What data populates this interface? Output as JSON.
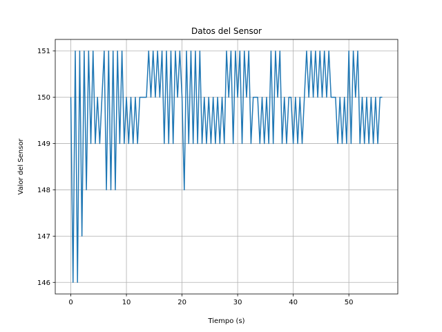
{
  "chart_data": {
    "type": "line",
    "title": "Datos del Sensor",
    "xlabel": "Tiempo (s)",
    "ylabel": "Valor del Sensor",
    "color": "#1f77b4",
    "grid": true,
    "xlim": [
      -2.8,
      58.8
    ],
    "ylim": [
      145.75,
      151.25
    ],
    "xticks": [
      0,
      10,
      20,
      30,
      40,
      50
    ],
    "yticks": [
      146,
      147,
      148,
      149,
      150,
      151
    ],
    "x": [
      0,
      0.4,
      0.8,
      1.2,
      1.6,
      2.0,
      2.4,
      2.8,
      3.2,
      3.6,
      4.0,
      4.4,
      4.8,
      5.2,
      5.6,
      6.0,
      6.4,
      6.8,
      7.2,
      7.6,
      8.0,
      8.4,
      8.8,
      9.2,
      9.6,
      10.0,
      10.4,
      10.8,
      11.2,
      11.6,
      12.0,
      12.4,
      12.8,
      13.2,
      13.6,
      14.0,
      14.4,
      14.8,
      15.2,
      15.6,
      16.0,
      16.4,
      16.8,
      17.2,
      17.6,
      18.0,
      18.4,
      18.8,
      19.2,
      19.6,
      20.0,
      20.4,
      20.8,
      21.2,
      21.6,
      22.0,
      22.4,
      22.8,
      23.2,
      23.6,
      24.0,
      24.4,
      24.8,
      25.2,
      25.6,
      26.0,
      26.4,
      26.8,
      27.2,
      27.6,
      28.0,
      28.4,
      28.8,
      29.2,
      29.6,
      30.0,
      30.4,
      30.8,
      31.2,
      31.6,
      32.0,
      32.4,
      32.8,
      33.2,
      33.6,
      34.0,
      34.4,
      34.8,
      35.2,
      35.6,
      36.0,
      36.4,
      36.8,
      37.2,
      37.6,
      38.0,
      38.4,
      38.8,
      39.2,
      39.6,
      40.0,
      40.4,
      40.8,
      41.2,
      41.6,
      42.0,
      42.4,
      42.8,
      43.2,
      43.6,
      44.0,
      44.4,
      44.8,
      45.2,
      45.6,
      46.0,
      46.4,
      46.8,
      47.2,
      47.6,
      48.0,
      48.4,
      48.8,
      49.2,
      49.6,
      50.0,
      50.4,
      50.8,
      51.2,
      51.6,
      52.0,
      52.4,
      52.8,
      53.2,
      53.6,
      54.0,
      54.4,
      54.8,
      55.2,
      55.6,
      56.0
    ],
    "values": [
      150,
      146,
      151,
      146,
      151,
      147,
      151,
      148,
      151,
      149,
      151,
      149,
      150,
      149,
      150,
      151,
      148,
      151,
      148,
      151,
      148,
      151,
      149,
      151,
      149,
      150,
      149,
      150,
      149,
      150,
      149,
      150,
      150,
      150,
      150,
      151,
      150,
      151,
      150,
      151,
      150,
      151,
      149,
      151,
      149,
      151,
      149,
      151,
      150,
      151,
      150,
      148,
      151,
      149,
      151,
      149,
      151,
      149,
      151,
      149,
      150,
      149,
      150,
      149,
      150,
      149,
      150,
      149,
      150,
      149,
      151,
      150,
      151,
      149,
      151,
      150,
      151,
      149,
      151,
      150,
      151,
      149,
      150,
      150,
      150,
      149,
      150,
      149,
      150,
      149,
      151,
      149,
      151,
      150,
      151,
      149,
      150,
      149,
      150,
      150,
      149,
      150,
      149,
      150,
      149,
      150,
      151,
      150,
      151,
      150,
      151,
      150,
      151,
      150,
      151,
      150,
      151,
      150,
      150,
      150,
      149,
      150,
      149,
      150,
      149,
      151,
      149,
      151,
      150,
      151,
      149,
      150,
      149,
      150,
      149,
      150,
      149,
      150,
      149,
      150,
      150
    ]
  }
}
